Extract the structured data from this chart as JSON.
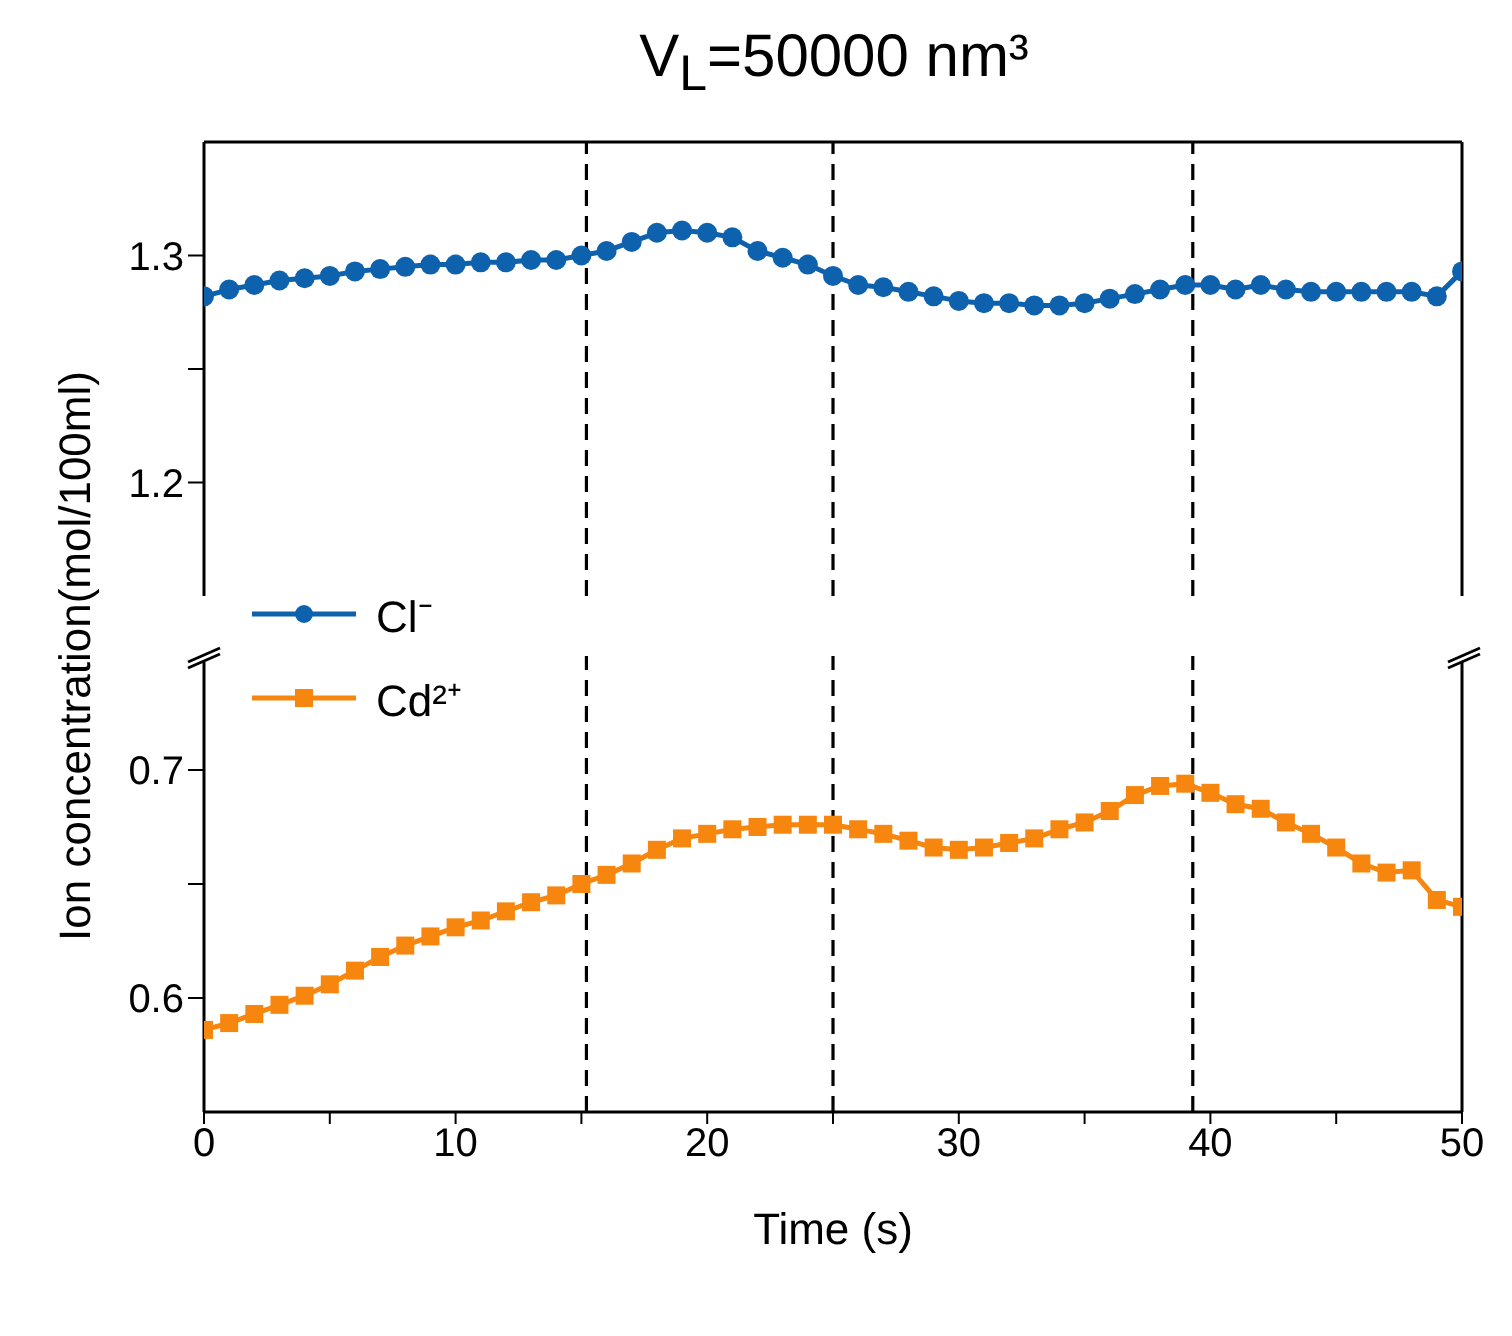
{
  "chart_data": [
    {
      "type": "line",
      "title": "V$_{L}$=50000 nm³",
      "ylabel": "Ion concentration(mol/100ml)",
      "marker": "circle",
      "legend": "bottom left",
      "tick_labels": "y",
      "x": [
        0,
        1,
        2,
        3,
        4,
        5,
        6,
        7,
        8,
        9,
        10,
        11,
        12,
        13,
        14,
        15,
        16,
        17,
        18,
        19,
        20,
        21,
        22,
        23,
        24,
        25,
        26,
        27,
        28,
        29,
        30,
        31,
        32,
        33,
        34,
        35,
        36,
        37,
        38,
        39,
        40,
        41,
        42,
        43,
        44,
        45,
        46,
        47,
        48,
        49,
        50
      ],
      "xlim": [
        0,
        50
      ],
      "ylim": [
        1.15,
        1.35
      ],
      "yticks": [
        1.2,
        {
          "value": 1.25,
          "label": null
        },
        1.3
      ],
      "series": [
        {
          "name": "Cl⁻",
          "color": "#0e62ad",
          "values": [
            1.282,
            1.285,
            1.287,
            1.289,
            1.29,
            1.291,
            1.293,
            1.294,
            1.295,
            1.296,
            1.296,
            1.297,
            1.297,
            1.298,
            1.298,
            1.3,
            1.302,
            1.306,
            1.31,
            1.311,
            1.31,
            1.308,
            1.302,
            1.299,
            1.296,
            1.291,
            1.287,
            1.286,
            1.284,
            1.282,
            1.28,
            1.279,
            1.279,
            1.278,
            1.278,
            1.279,
            1.281,
            1.283,
            1.285,
            1.287,
            1.287,
            1.285,
            1.287,
            1.285,
            1.284,
            1.284,
            1.284,
            1.284,
            1.284,
            1.282,
            1.293
          ]
        }
      ],
      "ref_lines": [
        {
          "axis": "x",
          "value": 15.2,
          "color": "#000000",
          "line_style": "dashed"
        },
        {
          "axis": "x",
          "value": 25,
          "color": "#000000",
          "line_style": "dashed"
        },
        {
          "axis": "x",
          "value": 39.3,
          "color": "#000000",
          "line_style": "dashed"
        }
      ]
    },
    {
      "type": "line",
      "xlabel": "Time (s)",
      "marker": "square",
      "legend": "top left",
      "x": [
        0,
        1,
        2,
        3,
        4,
        5,
        6,
        7,
        8,
        9,
        10,
        11,
        12,
        13,
        14,
        15,
        16,
        17,
        18,
        19,
        20,
        21,
        22,
        23,
        24,
        25,
        26,
        27,
        28,
        29,
        30,
        31,
        32,
        33,
        34,
        35,
        36,
        37,
        38,
        39,
        40,
        41,
        42,
        43,
        44,
        45,
        46,
        47,
        48,
        49,
        50
      ],
      "xlim": [
        0,
        50
      ],
      "xticks": [
        0,
        {
          "value": 5,
          "label": null
        },
        10,
        {
          "value": 15,
          "label": null
        },
        20,
        {
          "value": 25,
          "label": null
        },
        30,
        {
          "value": 35,
          "label": null
        },
        40,
        {
          "value": 45,
          "label": null
        },
        50
      ],
      "ylim": [
        0.55,
        0.75
      ],
      "yticks": [
        0.6,
        {
          "value": 0.65,
          "label": null
        },
        0.7
      ],
      "series": [
        {
          "name": "Cd²⁺",
          "color": "#f7860f",
          "values": [
            0.586,
            0.589,
            0.593,
            0.597,
            0.601,
            0.606,
            0.612,
            0.618,
            0.623,
            0.627,
            0.631,
            0.634,
            0.638,
            0.642,
            0.645,
            0.65,
            0.654,
            0.659,
            0.665,
            0.67,
            0.672,
            0.674,
            0.675,
            0.676,
            0.676,
            0.676,
            0.674,
            0.672,
            0.669,
            0.666,
            0.665,
            0.666,
            0.668,
            0.67,
            0.674,
            0.677,
            0.682,
            0.689,
            0.693,
            0.694,
            0.69,
            0.685,
            0.683,
            0.677,
            0.672,
            0.666,
            0.659,
            0.655,
            0.656,
            0.643,
            0.64
          ]
        }
      ],
      "ref_lines": [
        {
          "axis": "x",
          "value": 15.2,
          "color": "#000000",
          "line_style": "dashed"
        },
        {
          "axis": "x",
          "value": 25,
          "color": "#000000",
          "line_style": "dashed"
        },
        {
          "axis": "x",
          "value": 39.3,
          "color": "#000000",
          "line_style": "dashed"
        }
      ]
    }
  ]
}
